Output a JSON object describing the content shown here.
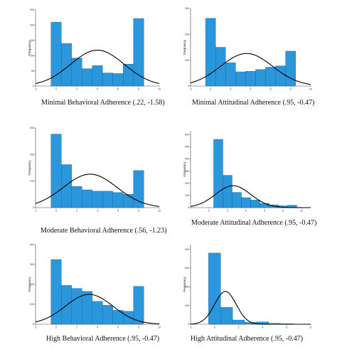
{
  "colors": {
    "bar": "#2a96dc",
    "bar_stroke": "#1b5f8e",
    "curve": "#000000",
    "axis": "#444444"
  },
  "y_label": "Frequency",
  "chart_data": [
    {
      "type": "bar",
      "caption": "Minimal Behavioral Adherence (.22, -1.58)",
      "bins": [
        0,
        1,
        2,
        3,
        4,
        5,
        6,
        7,
        8
      ],
      "values": [
        210,
        140,
        92,
        57,
        67,
        43,
        41,
        72,
        222
      ],
      "xticks": [
        "-2",
        "0",
        "2",
        "4",
        "6",
        "8",
        "10"
      ],
      "xlim": [
        -2,
        10
      ],
      "yticks": [
        "0",
        "50",
        "100",
        "150",
        "200",
        "250"
      ],
      "ylim": [
        0,
        250
      ],
      "normal_curve": {
        "mean": 4.0,
        "sd": 2.6,
        "peak": 118
      }
    },
    {
      "type": "bar",
      "caption": "Minimal Attitudinal Adherence (.95, -0.47)",
      "bins": [
        0,
        1,
        2,
        3,
        4,
        5,
        6,
        7,
        8
      ],
      "values": [
        262,
        150,
        90,
        55,
        57,
        64,
        73,
        78,
        135
      ],
      "xticks": [
        "-2",
        "0",
        "2",
        "4",
        "6",
        "8",
        "10"
      ],
      "xlim": [
        -2,
        10
      ],
      "yticks": [
        "0",
        "100",
        "200",
        "300"
      ],
      "ylim": [
        0,
        300
      ],
      "normal_curve": {
        "mean": 3.6,
        "sd": 2.6,
        "peak": 126
      }
    },
    {
      "type": "bar",
      "caption": "Moderate Behavioral Adherence (.56, -1.23)",
      "bins": [
        0,
        1,
        2,
        3,
        4,
        5,
        6,
        7,
        8
      ],
      "values": [
        277,
        162,
        80,
        67,
        62,
        62,
        57,
        50,
        140
      ],
      "xticks": [
        "-2",
        "0",
        "2",
        "4",
        "6",
        "8",
        "10"
      ],
      "xlim": [
        -2,
        10
      ],
      "yticks": [
        "0",
        "100",
        "200",
        "300"
      ],
      "ylim": [
        0,
        300
      ],
      "normal_curve": {
        "mean": 3.3,
        "sd": 2.6,
        "peak": 126
      }
    },
    {
      "type": "bar",
      "caption": "Moderate Attitudinal Adherence (.95, -0.47)",
      "bins": [
        1,
        2,
        3,
        4,
        5,
        6,
        7,
        8,
        9
      ],
      "values": [
        560,
        265,
        125,
        82,
        62,
        35,
        23,
        15,
        20
      ],
      "xticks": [
        "0",
        "2",
        "4",
        "6",
        "8",
        "10"
      ],
      "xlim": [
        -2,
        11
      ],
      "yticks": [
        "0",
        "100",
        "200",
        "300",
        "400",
        "500",
        "600"
      ],
      "ylim": [
        0,
        630
      ],
      "normal_curve": {
        "mean": 2.6,
        "sd": 1.9,
        "peak": 180
      }
    },
    {
      "type": "bar",
      "caption": "High Behavioral Adherence (.95, -0.47)",
      "bins": [
        0,
        1,
        2,
        3,
        4,
        5,
        6,
        7,
        8
      ],
      "values": [
        325,
        195,
        180,
        165,
        115,
        95,
        70,
        65,
        190
      ],
      "xticks": [
        "-2",
        "0",
        "2",
        "4",
        "6",
        "8",
        "10"
      ],
      "xlim": [
        -2,
        10
      ],
      "yticks": [
        "0",
        "100",
        "200",
        "300",
        "400"
      ],
      "ylim": [
        0,
        400
      ],
      "normal_curve": {
        "mean": 3.2,
        "sd": 2.3,
        "peak": 150
      }
    },
    {
      "type": "bar",
      "caption": "High Attitudinal Adherence (.95, -0.47)",
      "bins": [
        0,
        1,
        2,
        3,
        4,
        5,
        6
      ],
      "values": [
        760,
        180,
        45,
        20,
        25,
        10,
        5
      ],
      "xticks": [
        "-2",
        "0",
        "2",
        "4",
        "6",
        "8"
      ],
      "xlim": [
        -2,
        8
      ],
      "yticks": [
        "0",
        "200",
        "400",
        "600",
        "800"
      ],
      "ylim": [
        0,
        850
      ],
      "normal_curve": {
        "mean": 0.9,
        "sd": 0.9,
        "peak": 350
      }
    }
  ]
}
